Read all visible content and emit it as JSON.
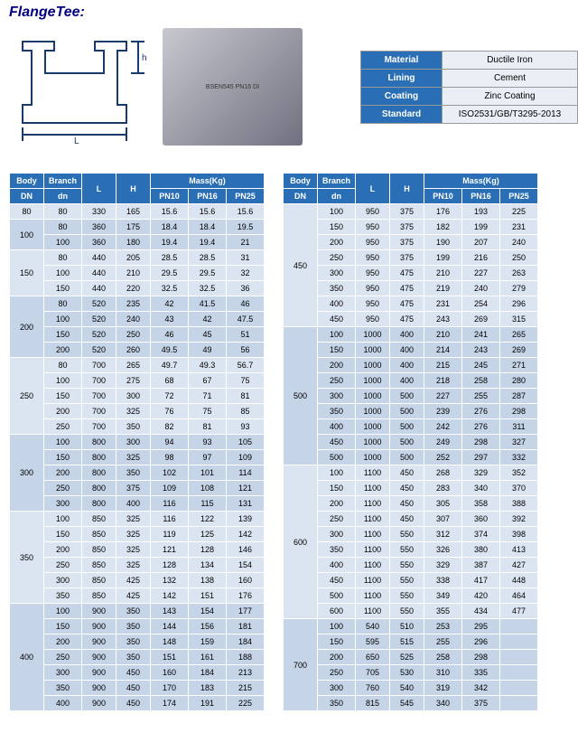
{
  "title": "FlangeTee:",
  "photo_text": "BSEN545 PN16 DI",
  "info": {
    "rows": [
      {
        "label": "Material",
        "value": "Ductile Iron"
      },
      {
        "label": "Lining",
        "value": "Cement"
      },
      {
        "label": "Coating",
        "value": "Zinc Coating"
      },
      {
        "label": "Standard",
        "value": "ISO2531/GB/T3295-2013"
      }
    ]
  },
  "headers": {
    "body": "Body",
    "branch": "Branch",
    "l": "L",
    "h": "H",
    "mass": "Mass(Kg)",
    "dn_body": "DN",
    "dn_branch": "dn",
    "pn10": "PN10",
    "pn16": "PN16",
    "pn25": "PN25"
  },
  "left_groups": [
    {
      "body": "80",
      "rows": [
        {
          "dn": "80",
          "l": "330",
          "h": "165",
          "p10": "15.6",
          "p16": "15.6",
          "p25": "15.6"
        }
      ]
    },
    {
      "body": "100",
      "rows": [
        {
          "dn": "80",
          "l": "360",
          "h": "175",
          "p10": "18.4",
          "p16": "18.4",
          "p25": "19.5"
        },
        {
          "dn": "100",
          "l": "360",
          "h": "180",
          "p10": "19.4",
          "p16": "19.4",
          "p25": "21"
        }
      ]
    },
    {
      "body": "150",
      "rows": [
        {
          "dn": "80",
          "l": "440",
          "h": "205",
          "p10": "28.5",
          "p16": "28.5",
          "p25": "31"
        },
        {
          "dn": "100",
          "l": "440",
          "h": "210",
          "p10": "29.5",
          "p16": "29.5",
          "p25": "32"
        },
        {
          "dn": "150",
          "l": "440",
          "h": "220",
          "p10": "32.5",
          "p16": "32.5",
          "p25": "36"
        }
      ]
    },
    {
      "body": "200",
      "rows": [
        {
          "dn": "80",
          "l": "520",
          "h": "235",
          "p10": "42",
          "p16": "41.5",
          "p25": "46"
        },
        {
          "dn": "100",
          "l": "520",
          "h": "240",
          "p10": "43",
          "p16": "42",
          "p25": "47.5"
        },
        {
          "dn": "150",
          "l": "520",
          "h": "250",
          "p10": "46",
          "p16": "45",
          "p25": "51"
        },
        {
          "dn": "200",
          "l": "520",
          "h": "260",
          "p10": "49.5",
          "p16": "49",
          "p25": "56"
        }
      ]
    },
    {
      "body": "250",
      "rows": [
        {
          "dn": "80",
          "l": "700",
          "h": "265",
          "p10": "49.7",
          "p16": "49.3",
          "p25": "56.7"
        },
        {
          "dn": "100",
          "l": "700",
          "h": "275",
          "p10": "68",
          "p16": "67",
          "p25": "75"
        },
        {
          "dn": "150",
          "l": "700",
          "h": "300",
          "p10": "72",
          "p16": "71",
          "p25": "81"
        },
        {
          "dn": "200",
          "l": "700",
          "h": "325",
          "p10": "76",
          "p16": "75",
          "p25": "85"
        },
        {
          "dn": "250",
          "l": "700",
          "h": "350",
          "p10": "82",
          "p16": "81",
          "p25": "93"
        }
      ]
    },
    {
      "body": "300",
      "rows": [
        {
          "dn": "100",
          "l": "800",
          "h": "300",
          "p10": "94",
          "p16": "93",
          "p25": "105"
        },
        {
          "dn": "150",
          "l": "800",
          "h": "325",
          "p10": "98",
          "p16": "97",
          "p25": "109"
        },
        {
          "dn": "200",
          "l": "800",
          "h": "350",
          "p10": "102",
          "p16": "101",
          "p25": "114"
        },
        {
          "dn": "250",
          "l": "800",
          "h": "375",
          "p10": "109",
          "p16": "108",
          "p25": "121"
        },
        {
          "dn": "300",
          "l": "800",
          "h": "400",
          "p10": "116",
          "p16": "115",
          "p25": "131"
        }
      ]
    },
    {
      "body": "350",
      "rows": [
        {
          "dn": "100",
          "l": "850",
          "h": "325",
          "p10": "116",
          "p16": "122",
          "p25": "139"
        },
        {
          "dn": "150",
          "l": "850",
          "h": "325",
          "p10": "119",
          "p16": "125",
          "p25": "142"
        },
        {
          "dn": "200",
          "l": "850",
          "h": "325",
          "p10": "121",
          "p16": "128",
          "p25": "146"
        },
        {
          "dn": "250",
          "l": "850",
          "h": "325",
          "p10": "128",
          "p16": "134",
          "p25": "154"
        },
        {
          "dn": "300",
          "l": "850",
          "h": "425",
          "p10": "132",
          "p16": "138",
          "p25": "160"
        },
        {
          "dn": "350",
          "l": "850",
          "h": "425",
          "p10": "142",
          "p16": "151",
          "p25": "176"
        }
      ]
    },
    {
      "body": "400",
      "rows": [
        {
          "dn": "100",
          "l": "900",
          "h": "350",
          "p10": "143",
          "p16": "154",
          "p25": "177"
        },
        {
          "dn": "150",
          "l": "900",
          "h": "350",
          "p10": "144",
          "p16": "156",
          "p25": "181"
        },
        {
          "dn": "200",
          "l": "900",
          "h": "350",
          "p10": "148",
          "p16": "159",
          "p25": "184"
        },
        {
          "dn": "250",
          "l": "900",
          "h": "350",
          "p10": "151",
          "p16": "161",
          "p25": "188"
        },
        {
          "dn": "300",
          "l": "900",
          "h": "450",
          "p10": "160",
          "p16": "184",
          "p25": "213"
        },
        {
          "dn": "350",
          "l": "900",
          "h": "450",
          "p10": "170",
          "p16": "183",
          "p25": "215"
        },
        {
          "dn": "400",
          "l": "900",
          "h": "450",
          "p10": "174",
          "p16": "191",
          "p25": "225"
        }
      ]
    }
  ],
  "right_groups": [
    {
      "body": "450",
      "rows": [
        {
          "dn": "100",
          "l": "950",
          "h": "375",
          "p10": "176",
          "p16": "193",
          "p25": "225"
        },
        {
          "dn": "150",
          "l": "950",
          "h": "375",
          "p10": "182",
          "p16": "199",
          "p25": "231"
        },
        {
          "dn": "200",
          "l": "950",
          "h": "375",
          "p10": "190",
          "p16": "207",
          "p25": "240"
        },
        {
          "dn": "250",
          "l": "950",
          "h": "375",
          "p10": "199",
          "p16": "216",
          "p25": "250"
        },
        {
          "dn": "300",
          "l": "950",
          "h": "475",
          "p10": "210",
          "p16": "227",
          "p25": "263"
        },
        {
          "dn": "350",
          "l": "950",
          "h": "475",
          "p10": "219",
          "p16": "240",
          "p25": "279"
        },
        {
          "dn": "400",
          "l": "950",
          "h": "475",
          "p10": "231",
          "p16": "254",
          "p25": "296"
        },
        {
          "dn": "450",
          "l": "950",
          "h": "475",
          "p10": "243",
          "p16": "269",
          "p25": "315"
        }
      ]
    },
    {
      "body": "500",
      "rows": [
        {
          "dn": "100",
          "l": "1000",
          "h": "400",
          "p10": "210",
          "p16": "241",
          "p25": "265"
        },
        {
          "dn": "150",
          "l": "1000",
          "h": "400",
          "p10": "214",
          "p16": "243",
          "p25": "269"
        },
        {
          "dn": "200",
          "l": "1000",
          "h": "400",
          "p10": "215",
          "p16": "245",
          "p25": "271"
        },
        {
          "dn": "250",
          "l": "1000",
          "h": "400",
          "p10": "218",
          "p16": "258",
          "p25": "280"
        },
        {
          "dn": "300",
          "l": "1000",
          "h": "500",
          "p10": "227",
          "p16": "255",
          "p25": "287"
        },
        {
          "dn": "350",
          "l": "1000",
          "h": "500",
          "p10": "239",
          "p16": "276",
          "p25": "298"
        },
        {
          "dn": "400",
          "l": "1000",
          "h": "500",
          "p10": "242",
          "p16": "276",
          "p25": "311"
        },
        {
          "dn": "450",
          "l": "1000",
          "h": "500",
          "p10": "249",
          "p16": "298",
          "p25": "327"
        },
        {
          "dn": "500",
          "l": "1000",
          "h": "500",
          "p10": "252",
          "p16": "297",
          "p25": "332"
        }
      ]
    },
    {
      "body": "600",
      "rows": [
        {
          "dn": "100",
          "l": "1100",
          "h": "450",
          "p10": "268",
          "p16": "329",
          "p25": "352"
        },
        {
          "dn": "150",
          "l": "1100",
          "h": "450",
          "p10": "283",
          "p16": "340",
          "p25": "370"
        },
        {
          "dn": "200",
          "l": "1100",
          "h": "450",
          "p10": "305",
          "p16": "358",
          "p25": "388"
        },
        {
          "dn": "250",
          "l": "1100",
          "h": "450",
          "p10": "307",
          "p16": "360",
          "p25": "392"
        },
        {
          "dn": "300",
          "l": "1100",
          "h": "550",
          "p10": "312",
          "p16": "374",
          "p25": "398"
        },
        {
          "dn": "350",
          "l": "1100",
          "h": "550",
          "p10": "326",
          "p16": "380",
          "p25": "413"
        },
        {
          "dn": "400",
          "l": "1100",
          "h": "550",
          "p10": "329",
          "p16": "387",
          "p25": "427"
        },
        {
          "dn": "450",
          "l": "1100",
          "h": "550",
          "p10": "338",
          "p16": "417",
          "p25": "448"
        },
        {
          "dn": "500",
          "l": "1100",
          "h": "550",
          "p10": "349",
          "p16": "420",
          "p25": "464"
        },
        {
          "dn": "600",
          "l": "1100",
          "h": "550",
          "p10": "355",
          "p16": "434",
          "p25": "477"
        }
      ]
    },
    {
      "body": "700",
      "rows": [
        {
          "dn": "100",
          "l": "540",
          "h": "510",
          "p10": "253",
          "p16": "295",
          "p25": ""
        },
        {
          "dn": "150",
          "l": "595",
          "h": "515",
          "p10": "255",
          "p16": "296",
          "p25": ""
        },
        {
          "dn": "200",
          "l": "650",
          "h": "525",
          "p10": "258",
          "p16": "298",
          "p25": ""
        },
        {
          "dn": "250",
          "l": "705",
          "h": "530",
          "p10": "310",
          "p16": "335",
          "p25": ""
        },
        {
          "dn": "300",
          "l": "760",
          "h": "540",
          "p10": "319",
          "p16": "342",
          "p25": ""
        },
        {
          "dn": "350",
          "l": "815",
          "h": "545",
          "p10": "340",
          "p16": "375",
          "p25": ""
        }
      ]
    }
  ]
}
